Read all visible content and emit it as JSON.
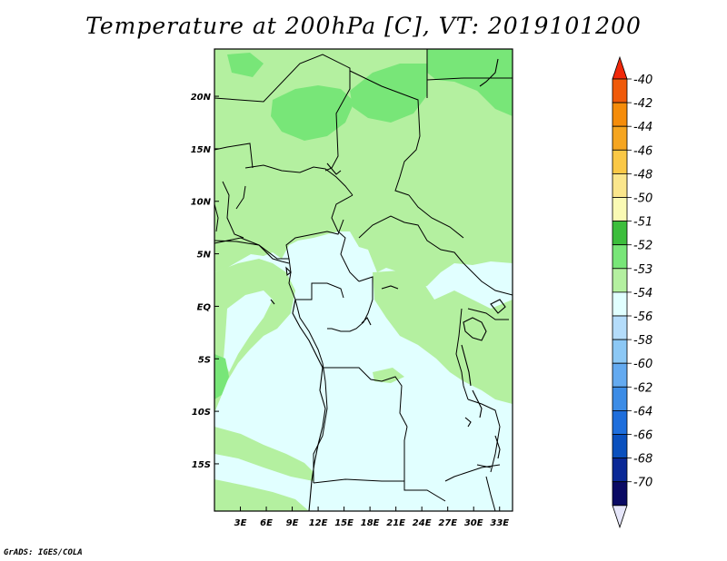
{
  "title": "Temperature at 200hPa [C], VT: 2019101200",
  "credit": "GrADS: IGES/COLA",
  "map": {
    "lon_range": [
      0,
      34.5
    ],
    "lat_range": [
      -19.5,
      24.5
    ],
    "lon_ticks": [
      {
        "lon": 3,
        "label": "3E"
      },
      {
        "lon": 6,
        "label": "6E"
      },
      {
        "lon": 9,
        "label": "9E"
      },
      {
        "lon": 12,
        "label": "12E"
      },
      {
        "lon": 15,
        "label": "15E"
      },
      {
        "lon": 18,
        "label": "18E"
      },
      {
        "lon": 21,
        "label": "21E"
      },
      {
        "lon": 24,
        "label": "24E"
      },
      {
        "lon": 27,
        "label": "27E"
      },
      {
        "lon": 30,
        "label": "30E"
      },
      {
        "lon": 33,
        "label": "33E"
      }
    ],
    "lat_ticks": [
      {
        "lat": 20,
        "label": "20N"
      },
      {
        "lat": 15,
        "label": "15N"
      },
      {
        "lat": 10,
        "label": "10N"
      },
      {
        "lat": 5,
        "label": "5N"
      },
      {
        "lat": 0,
        "label": "EQ"
      },
      {
        "lat": -5,
        "label": "5S"
      },
      {
        "lat": -10,
        "label": "10S"
      },
      {
        "lat": -15,
        "label": "15S"
      }
    ]
  },
  "colorbar": {
    "levels": [
      "-40",
      "-42",
      "-44",
      "-46",
      "-48",
      "-50",
      "-51",
      "-52",
      "-53",
      "-54",
      "-56",
      "-58",
      "-60",
      "-62",
      "-64",
      "-66",
      "-68",
      "-70"
    ],
    "colors": [
      "#f0280a",
      "#f05a0a",
      "#f58c0a",
      "#f5a520",
      "#fac846",
      "#fae68c",
      "#fafab4",
      "#3cbe3c",
      "#78e678",
      "#b4f0a0",
      "#e1ffff",
      "#b4dcfa",
      "#8cc8f5",
      "#64aaf0",
      "#3c8ce6",
      "#1e6edc",
      "#0a50be",
      "#0a2896",
      "#0a0a64",
      "#e6e6fa"
    ],
    "map_colors": {
      "level_54": "#e1ffff",
      "level_53": "#b4f0a0",
      "level_52": "#78e678"
    }
  }
}
